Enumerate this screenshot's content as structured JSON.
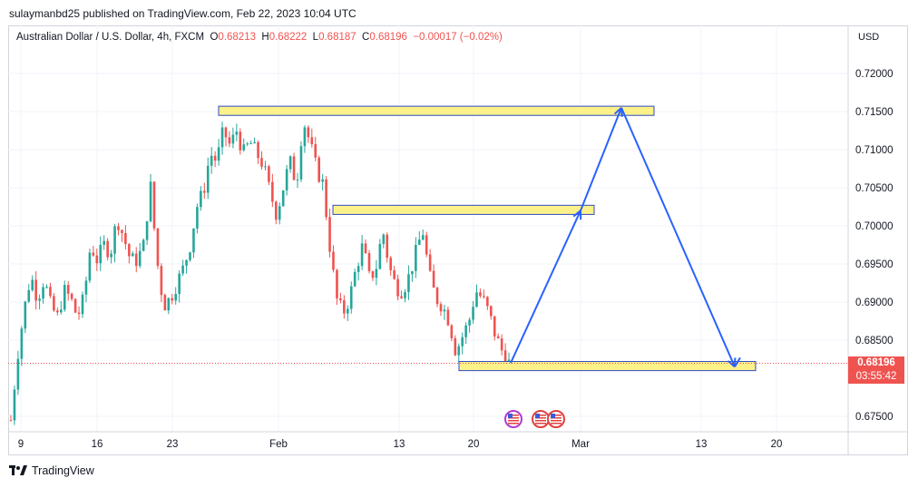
{
  "header": {
    "published": "sulaymanbd25 published on TradingView.com, Feb 22, 2023 10:04 UTC"
  },
  "legend": {
    "symbol": "Australian Dollar / U.S. Dollar, 4h, FXCM",
    "o_label": "O",
    "o_value": "0.68213",
    "h_label": "H",
    "h_value": "0.68222",
    "l_label": "L",
    "l_value": "0.68187",
    "c_label": "C",
    "c_value": "0.68196",
    "change": "−0.00017 (−0.02%)"
  },
  "chart_data": {
    "type": "candlestick",
    "currency_label": "USD",
    "ylim": [
      0.673,
      0.725
    ],
    "y_ticks": [
      "0.72000",
      "0.71500",
      "0.71000",
      "0.70500",
      "0.70000",
      "0.69500",
      "0.69000",
      "0.68500",
      "0.67500"
    ],
    "x_ticks": [
      "9",
      "16",
      "23",
      "Feb",
      "13",
      "20",
      "Mar",
      "13",
      "20"
    ],
    "last_price": "0.68196",
    "countdown": "03:55:42",
    "candle_path": [
      0.6745,
      0.683,
      0.689,
      0.6935,
      0.6905,
      0.693,
      0.6895,
      0.688,
      0.6915,
      0.6905,
      0.688,
      0.6905,
      0.6975,
      0.6955,
      0.6975,
      0.6965,
      0.701,
      0.6985,
      0.6955,
      0.6955,
      0.6975,
      0.7055,
      0.6955,
      0.6895,
      0.6905,
      0.6925,
      0.6945,
      0.6975,
      0.7025,
      0.7045,
      0.7095,
      0.7085,
      0.7125,
      0.7105,
      0.7125,
      0.7095,
      0.711,
      0.7095,
      0.708,
      0.7045,
      0.7015,
      0.705,
      0.7085,
      0.7055,
      0.714,
      0.711,
      0.7075,
      0.7055,
      0.6975,
      0.6905,
      0.6885,
      0.6905,
      0.6945,
      0.6975,
      0.693,
      0.6945,
      0.6995,
      0.6945,
      0.692,
      0.6915,
      0.6935,
      0.6965,
      0.6995,
      0.6935,
      0.6905,
      0.6895,
      0.6875,
      0.6835,
      0.6855,
      0.6875,
      0.6915,
      0.6905,
      0.6885,
      0.6855,
      0.6835,
      0.682
    ],
    "zones": [
      {
        "name": "upper-resistance",
        "low": 0.7145,
        "high": 0.7157
      },
      {
        "name": "middle-resistance",
        "low": 0.7015,
        "high": 0.7027
      },
      {
        "name": "support",
        "low": 0.681,
        "high": 0.6822
      }
    ],
    "projection": [
      {
        "date": "Feb 22",
        "price": 0.682
      },
      {
        "date": "Mar 1",
        "price": 0.702
      },
      {
        "date": "Mar 6",
        "price": 0.7155
      },
      {
        "date": "Mar 16",
        "price": 0.6815
      }
    ],
    "colors": {
      "up": "#26a69a",
      "down": "#ef5350",
      "zone_fill": "#fdf18a",
      "zone_border": "#2f4cbf",
      "arrow": "#2962ff",
      "grid": "#f0f3fa"
    }
  },
  "footer": {
    "brand": "TradingView"
  }
}
